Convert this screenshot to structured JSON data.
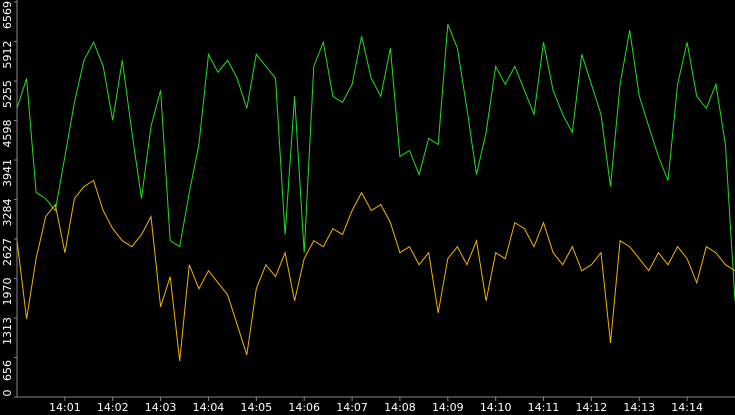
{
  "chart_data": {
    "type": "line",
    "x": [
      0,
      0.2,
      0.4,
      0.6,
      0.8,
      1.0,
      1.2,
      1.4,
      1.6,
      1.8,
      2.0,
      2.2,
      2.4,
      2.6,
      2.8,
      3.0,
      3.2,
      3.4,
      3.6,
      3.8,
      4.0,
      4.2,
      4.4,
      4.6,
      4.8,
      5.0,
      5.2,
      5.4,
      5.6,
      5.8,
      6.0,
      6.2,
      6.4,
      6.6,
      6.8,
      7.0,
      7.2,
      7.4,
      7.6,
      7.8,
      8.0,
      8.2,
      8.4,
      8.6,
      8.8,
      9.0,
      9.2,
      9.4,
      9.6,
      9.8,
      10.0,
      10.2,
      10.4,
      10.6,
      10.8,
      11.0,
      11.2,
      11.4,
      11.6,
      11.8,
      12.0,
      12.2,
      12.4,
      12.6,
      12.8,
      13.0,
      13.2,
      13.4,
      13.6,
      13.8,
      14.0,
      14.2,
      14.4,
      14.6,
      14.8,
      15.0
    ],
    "series": [
      {
        "color": "#22dd22",
        "values": [
          4800,
          5300,
          3400,
          3300,
          3100,
          4000,
          4900,
          5600,
          5900,
          5500,
          4600,
          5600,
          4400,
          3300,
          4500,
          5100,
          2600,
          2500,
          3400,
          4200,
          5700,
          5400,
          5600,
          5300,
          4800,
          5700,
          5500,
          5300,
          2700,
          5000,
          2400,
          5500,
          5900,
          5000,
          4900,
          5200,
          6000,
          5300,
          5000,
          5800,
          4000,
          4100,
          3700,
          4300,
          4200,
          6200,
          5800,
          4800,
          3700,
          4400,
          5500,
          5200,
          5500,
          5100,
          4700,
          5900,
          5100,
          4700,
          4400,
          5700,
          5200,
          4700,
          3500,
          5200,
          6100,
          5000,
          4500,
          4000,
          3600,
          5200,
          5900,
          5000,
          4800,
          5200,
          4200,
          1600
        ]
      },
      {
        "color": "#f0b400",
        "values": [
          2600,
          1300,
          2300,
          3000,
          3200,
          2400,
          3300,
          3500,
          3600,
          3100,
          2800,
          2600,
          2500,
          2700,
          3000,
          1500,
          2000,
          600,
          2200,
          1800,
          2100,
          1900,
          1700,
          1200,
          700,
          1800,
          2200,
          2000,
          2400,
          1600,
          2300,
          2600,
          2500,
          2800,
          2700,
          3100,
          3400,
          3100,
          3200,
          2900,
          2400,
          2500,
          2200,
          2400,
          1400,
          2300,
          2500,
          2200,
          2600,
          1600,
          2400,
          2300,
          2900,
          2800,
          2500,
          2900,
          2400,
          2200,
          2500,
          2100,
          2200,
          2400,
          900,
          2600,
          2500,
          2300,
          2100,
          2400,
          2200,
          2500,
          2300,
          1900,
          2500,
          2400,
          2200,
          2100
        ]
      }
    ],
    "xlim": [
      0,
      15
    ],
    "xticks": [
      {
        "value": 1,
        "label": "14:01"
      },
      {
        "value": 2,
        "label": "14:02"
      },
      {
        "value": 3,
        "label": "14:03"
      },
      {
        "value": 4,
        "label": "14:04"
      },
      {
        "value": 5,
        "label": "14:05"
      },
      {
        "value": 6,
        "label": "14:06"
      },
      {
        "value": 7,
        "label": "14:07"
      },
      {
        "value": 8,
        "label": "14:08"
      },
      {
        "value": 9,
        "label": "14:09"
      },
      {
        "value": 10,
        "label": "14:10"
      },
      {
        "value": 11,
        "label": "14:11"
      },
      {
        "value": 12,
        "label": "14:12"
      },
      {
        "value": 13,
        "label": "14:13"
      },
      {
        "value": 14,
        "label": "14:14"
      }
    ],
    "ylim": [
      0,
      6569
    ],
    "yticks": [
      0,
      656,
      1313,
      1970,
      2627,
      3284,
      3941,
      4598,
      5255,
      5912,
      6569
    ]
  }
}
